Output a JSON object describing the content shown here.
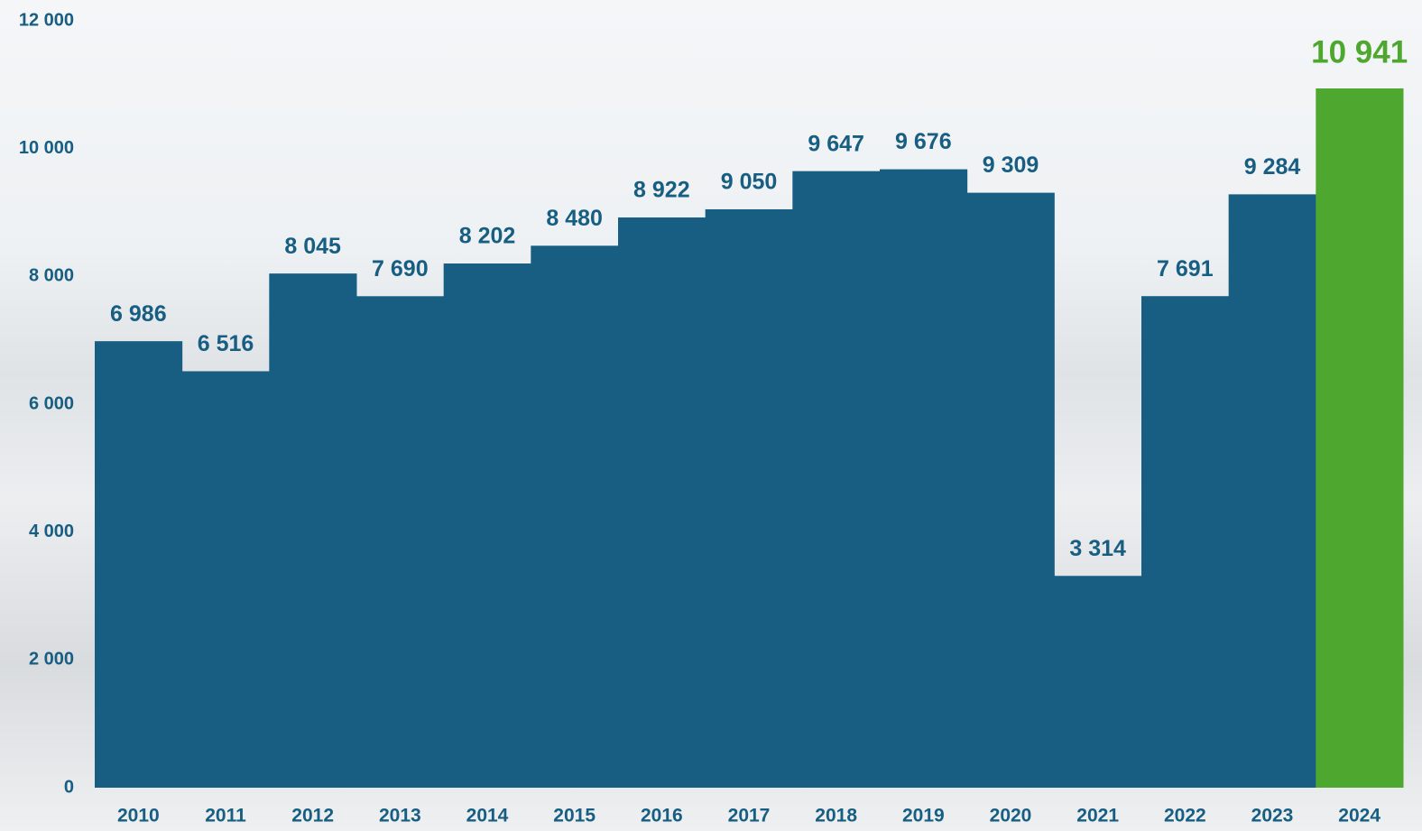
{
  "chart_data": {
    "type": "bar",
    "categories": [
      "2010",
      "2011",
      "2012",
      "2013",
      "2014",
      "2015",
      "2016",
      "2017",
      "2018",
      "2019",
      "2020",
      "2021",
      "2022",
      "2023",
      "2024"
    ],
    "values": [
      6986,
      6516,
      8045,
      7690,
      8202,
      8480,
      8922,
      9050,
      9647,
      9676,
      9309,
      3314,
      7691,
      9284,
      10941
    ],
    "value_labels": [
      "6 986",
      "6 516",
      "8 045",
      "7 690",
      "8 202",
      "8 480",
      "8 922",
      "9 050",
      "9 647",
      "9 676",
      "9 309",
      "3 314",
      "7 691",
      "9 284",
      "10 941"
    ],
    "colors": [
      "#175e82",
      "#175e82",
      "#175e82",
      "#175e82",
      "#175e82",
      "#175e82",
      "#175e82",
      "#175e82",
      "#175e82",
      "#175e82",
      "#175e82",
      "#175e82",
      "#175e82",
      "#175e82",
      "#4ea72e"
    ],
    "ylim": [
      0,
      12000
    ],
    "yticks": [
      {
        "value": 0,
        "label": "0"
      },
      {
        "value": 2000,
        "label": "2 000"
      },
      {
        "value": 4000,
        "label": "4 000"
      },
      {
        "value": 6000,
        "label": "6 000"
      },
      {
        "value": 8000,
        "label": "8 000"
      },
      {
        "value": 10000,
        "label": "10 000"
      },
      {
        "value": 12000,
        "label": "12 000"
      }
    ],
    "grid": false
  }
}
